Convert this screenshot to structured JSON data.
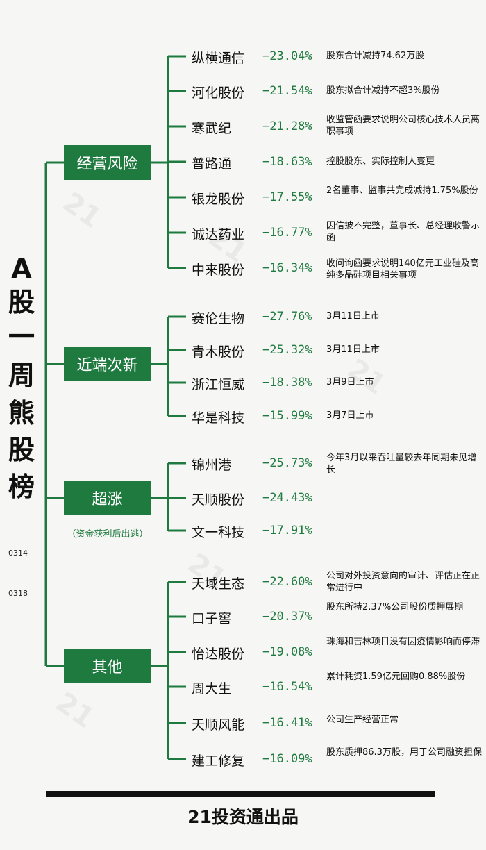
{
  "title_chars": [
    "A",
    "股",
    "一",
    "周",
    "熊",
    "股",
    "榜"
  ],
  "date_start": "0314",
  "date_end": "0318",
  "watermark_icon": "21-caijing-watermark",
  "colors": {
    "accent": "#1f7a3f",
    "text": "#111111",
    "background": "#f6f6f4"
  },
  "categories": [
    {
      "label": "经营风险",
      "note": "",
      "items": [
        {
          "name": "纵横通信",
          "pct": "−23.04%",
          "note": "股东合计减持74.62万股"
        },
        {
          "name": "河化股份",
          "pct": "−21.54%",
          "note": "股东拟合计减持不超3%股份"
        },
        {
          "name": "寒武纪",
          "pct": "−21.28%",
          "note": "收监管函要求说明公司核心技术人员离职事项"
        },
        {
          "name": "普路通",
          "pct": "−18.63%",
          "note": "控股股东、实际控制人变更"
        },
        {
          "name": "银龙股份",
          "pct": "−17.55%",
          "note": "2名董事、监事共完成减持1.75%股份"
        },
        {
          "name": "诚达药业",
          "pct": "−16.77%",
          "note": "因信披不完整，董事长、总经理收警示函"
        },
        {
          "name": "中来股份",
          "pct": "−16.34%",
          "note": "收问询函要求说明140亿元工业硅及高纯多晶硅项目相关事项"
        }
      ]
    },
    {
      "label": "近端次新",
      "note": "",
      "items": [
        {
          "name": "赛伦生物",
          "pct": "−27.76%",
          "note": "3月11日上市"
        },
        {
          "name": "青木股份",
          "pct": "−25.32%",
          "note": "3月11日上市"
        },
        {
          "name": "浙江恒威",
          "pct": "−18.38%",
          "note": "3月9日上市"
        },
        {
          "name": "华是科技",
          "pct": "−15.99%",
          "note": "3月7日上市"
        }
      ]
    },
    {
      "label": "超涨",
      "note": "（资金获利后出逃）",
      "items": [
        {
          "name": "锦州港",
          "pct": "−25.73%",
          "note": "今年3月以来吞吐量较去年同期未见增长"
        },
        {
          "name": "天顺股份",
          "pct": "−24.43%",
          "note": ""
        },
        {
          "name": "文一科技",
          "pct": "−17.91%",
          "note": ""
        }
      ]
    },
    {
      "label": "其他",
      "note": "",
      "items": [
        {
          "name": "天域生态",
          "pct": "−22.60%",
          "note": "公司对外投资意向的审计、评估正在正常进行中"
        },
        {
          "name": "口子窖",
          "pct": "−20.37%",
          "note": "股东所持2.37%公司股份质押展期"
        },
        {
          "name": "怡达股份",
          "pct": "−19.08%",
          "note": "珠海和吉林项目没有因疫情影响而停滞"
        },
        {
          "name": "周大生",
          "pct": "−16.54%",
          "note": "累计耗资1.59亿元回购0.88%股份"
        },
        {
          "name": "天顺风能",
          "pct": "−16.41%",
          "note": "公司生产经营正常"
        },
        {
          "name": "建工修复",
          "pct": "−16.09%",
          "note": "股东质押86.3万股，用于公司融资担保"
        }
      ]
    }
  ],
  "footer": "21投资通出品"
}
